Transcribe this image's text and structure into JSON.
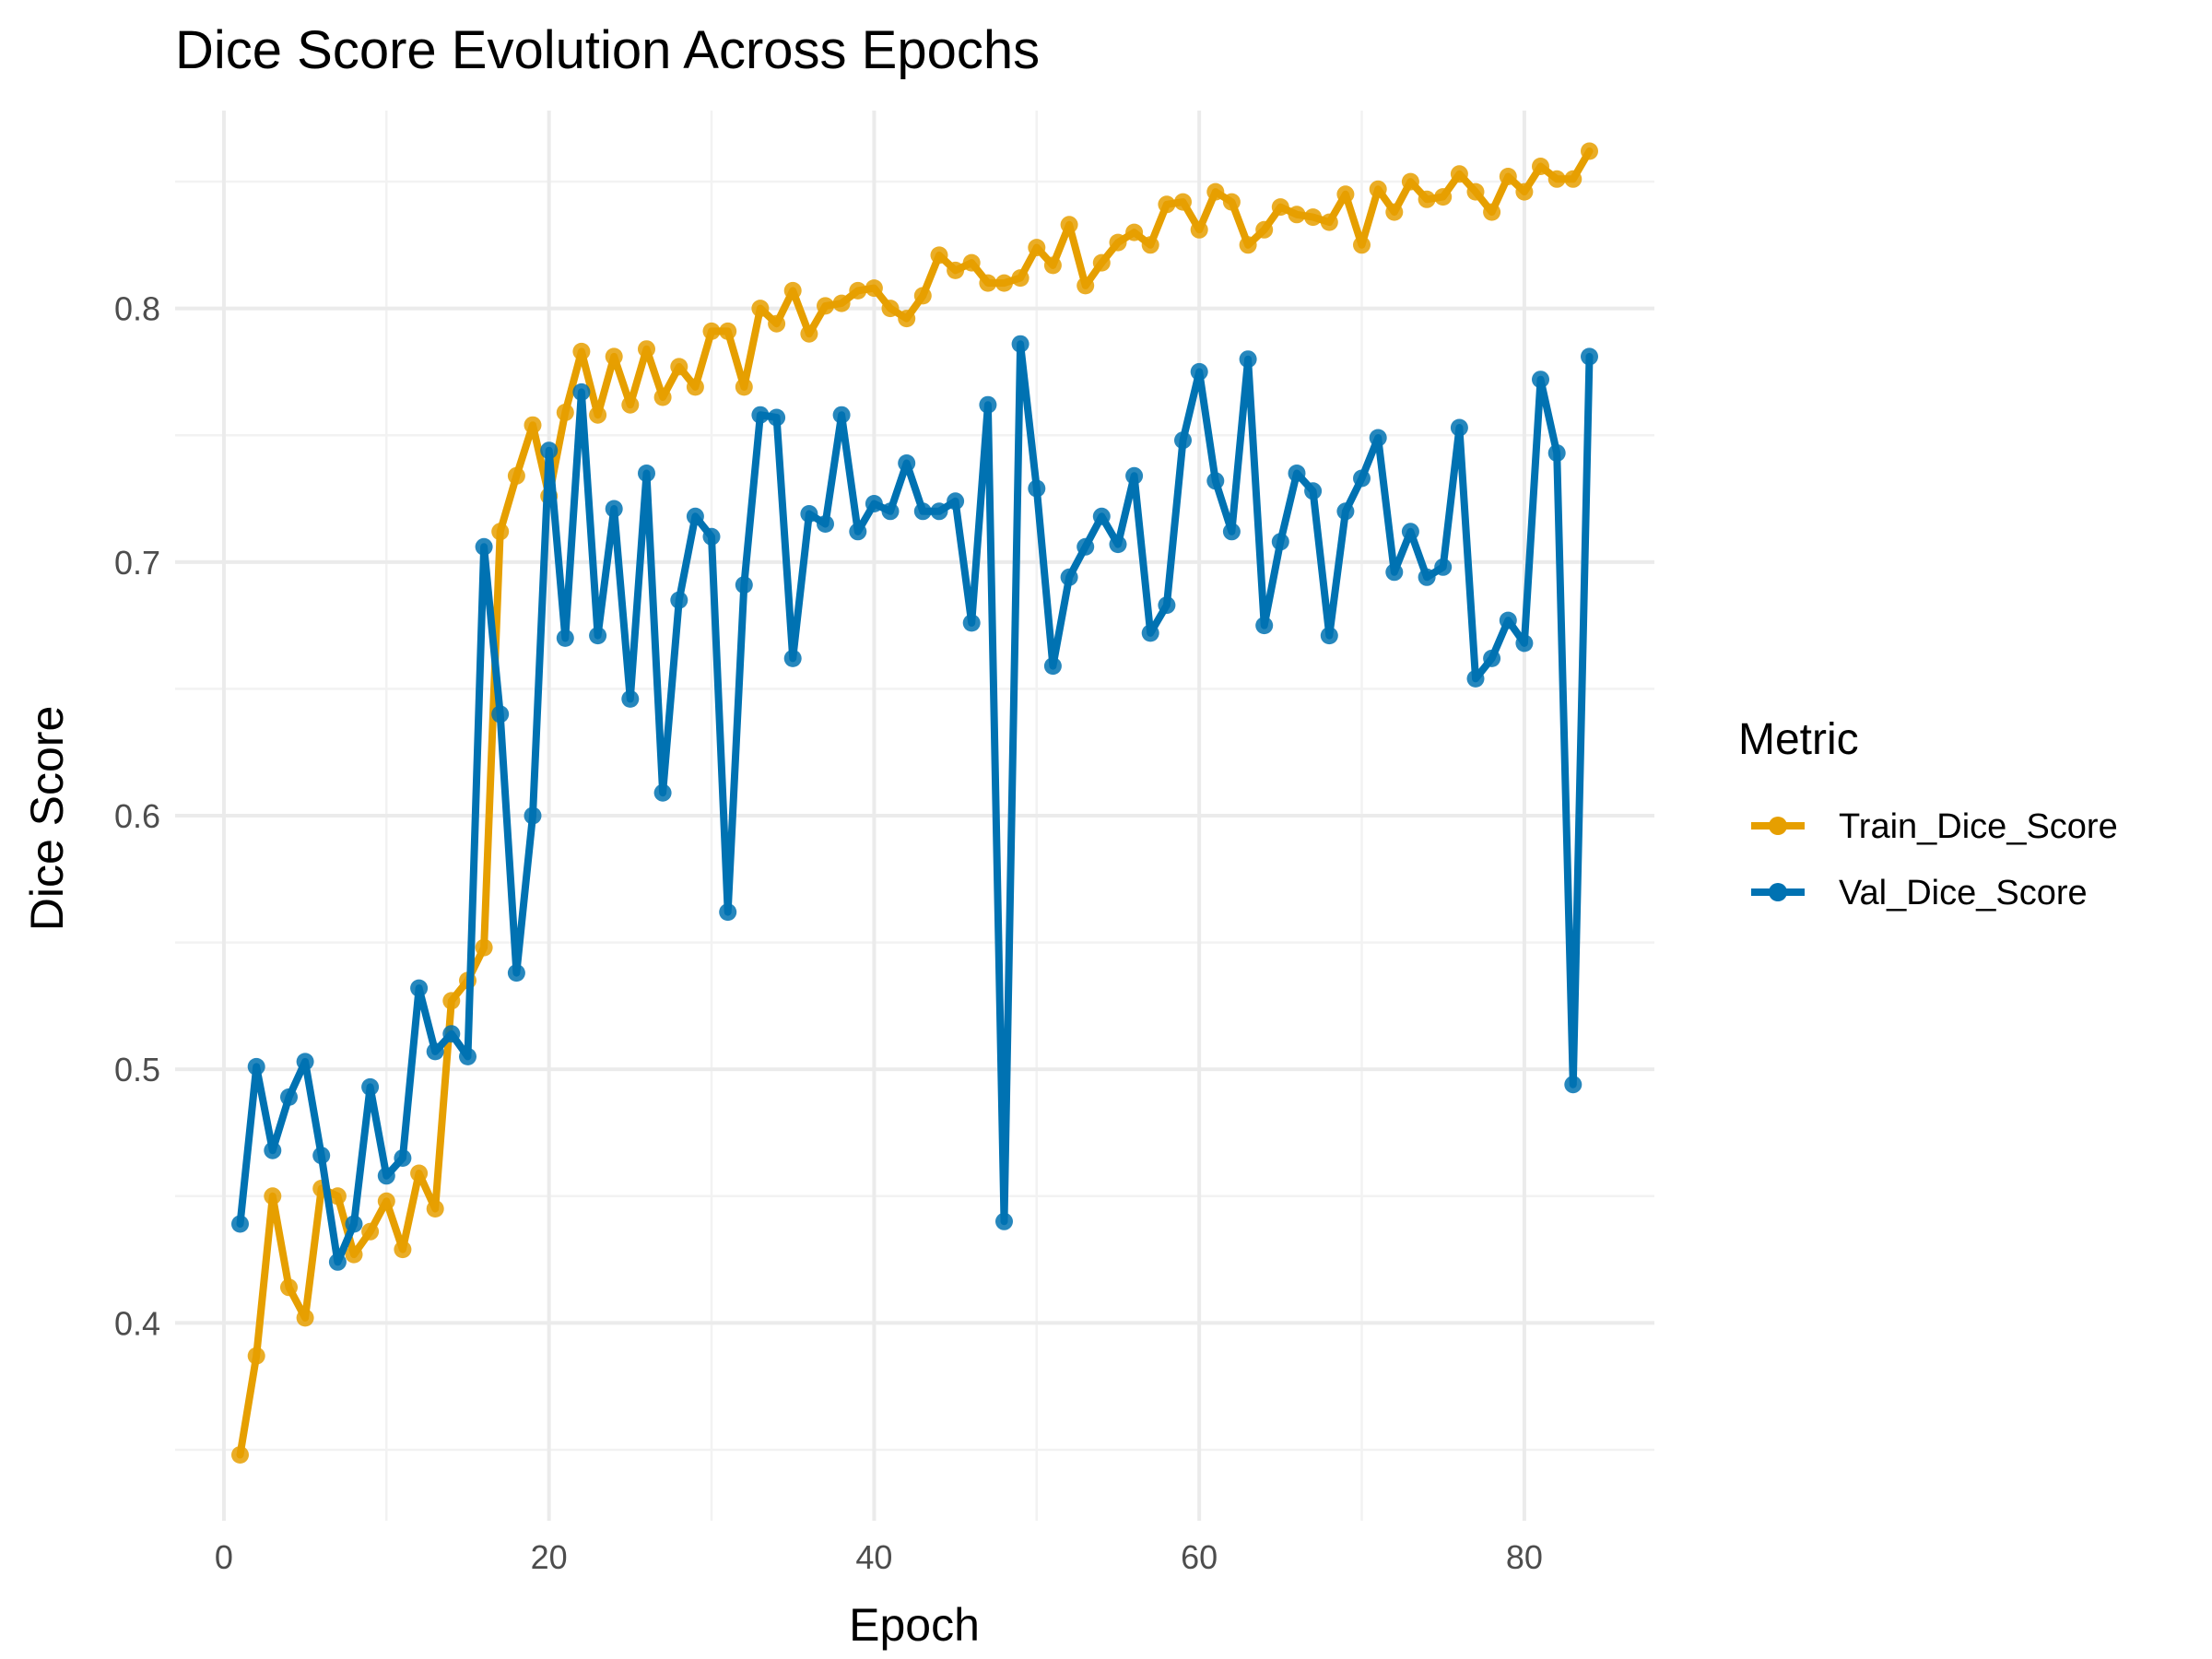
{
  "chart_data": {
    "type": "line",
    "title": "Dice Score Evolution Across Epochs",
    "xlabel": "Epoch",
    "ylabel": "Dice Score",
    "xlim": [
      -3,
      88
    ],
    "ylim": [
      0.322,
      0.878
    ],
    "x_ticks": [
      0,
      20,
      40,
      60,
      80
    ],
    "y_ticks": [
      0.4,
      0.5,
      0.6,
      0.7,
      0.8
    ],
    "grid": true,
    "legend": {
      "title": "Metric",
      "position": "right"
    },
    "series": [
      {
        "name": "Train_Dice_Score",
        "color": "#E69F00",
        "x": [
          1,
          2,
          3,
          4,
          5,
          6,
          7,
          8,
          9,
          10,
          11,
          12,
          13,
          14,
          15,
          16,
          17,
          18,
          19,
          20,
          21,
          22,
          23,
          24,
          25,
          26,
          27,
          28,
          29,
          30,
          31,
          32,
          33,
          34,
          35,
          36,
          37,
          38,
          39,
          40,
          41,
          42,
          43,
          44,
          45,
          46,
          47,
          48,
          49,
          50,
          51,
          52,
          53,
          54,
          55,
          56,
          57,
          58,
          59,
          60,
          61,
          62,
          63,
          64,
          65,
          66,
          67,
          68,
          69,
          70,
          71,
          72,
          73,
          74,
          75,
          76,
          77,
          78,
          79,
          80,
          81,
          82,
          83,
          84
        ],
        "values": [
          0.348,
          0.387,
          0.45,
          0.414,
          0.402,
          0.453,
          0.45,
          0.427,
          0.436,
          0.448,
          0.429,
          0.459,
          0.445,
          0.527,
          0.535,
          0.548,
          0.712,
          0.734,
          0.754,
          0.726,
          0.759,
          0.783,
          0.758,
          0.781,
          0.762,
          0.784,
          0.765,
          0.777,
          0.769,
          0.791,
          0.791,
          0.769,
          0.8,
          0.794,
          0.807,
          0.79,
          0.801,
          0.802,
          0.807,
          0.808,
          0.8,
          0.796,
          0.805,
          0.821,
          0.815,
          0.818,
          0.81,
          0.81,
          0.812,
          0.824,
          0.817,
          0.833,
          0.809,
          0.818,
          0.826,
          0.83,
          0.825,
          0.841,
          0.842,
          0.831,
          0.846,
          0.842,
          0.825,
          0.831,
          0.84,
          0.837,
          0.836,
          0.834,
          0.845,
          0.825,
          0.847,
          0.838,
          0.85,
          0.843,
          0.844,
          0.853,
          0.846,
          0.838,
          0.852,
          0.846,
          0.856,
          0.851,
          0.851,
          0.862
        ]
      },
      {
        "name": "Val_Dice_Score",
        "color": "#0072B2",
        "x": [
          1,
          2,
          3,
          4,
          5,
          6,
          7,
          8,
          9,
          10,
          11,
          12,
          13,
          14,
          15,
          16,
          17,
          18,
          19,
          20,
          21,
          22,
          23,
          24,
          25,
          26,
          27,
          28,
          29,
          30,
          31,
          32,
          33,
          34,
          35,
          36,
          37,
          38,
          39,
          40,
          41,
          42,
          43,
          44,
          45,
          46,
          47,
          48,
          49,
          50,
          51,
          52,
          53,
          54,
          55,
          56,
          57,
          58,
          59,
          60,
          61,
          62,
          63,
          64,
          65,
          66,
          67,
          68,
          69,
          70,
          71,
          72,
          73,
          74,
          75,
          76,
          77,
          78,
          79,
          80,
          81,
          82,
          83,
          84
        ],
        "values": [
          0.439,
          0.501,
          0.468,
          0.489,
          0.503,
          0.466,
          0.424,
          0.439,
          0.493,
          0.458,
          0.465,
          0.532,
          0.507,
          0.514,
          0.505,
          0.706,
          0.64,
          0.538,
          0.6,
          0.744,
          0.67,
          0.767,
          0.671,
          0.721,
          0.646,
          0.735,
          0.609,
          0.685,
          0.718,
          0.71,
          0.562,
          0.691,
          0.758,
          0.757,
          0.662,
          0.719,
          0.715,
          0.758,
          0.712,
          0.723,
          0.72,
          0.739,
          0.72,
          0.72,
          0.724,
          0.676,
          0.762,
          0.44,
          0.786,
          0.729,
          0.659,
          0.694,
          0.706,
          0.718,
          0.707,
          0.734,
          0.672,
          0.683,
          0.748,
          0.775,
          0.732,
          0.712,
          0.78,
          0.675,
          0.708,
          0.735,
          0.728,
          0.671,
          0.72,
          0.733,
          0.749,
          0.696,
          0.712,
          0.694,
          0.698,
          0.753,
          0.654,
          0.662,
          0.677,
          0.668,
          0.772,
          0.743,
          0.494,
          0.781
        ]
      }
    ]
  }
}
